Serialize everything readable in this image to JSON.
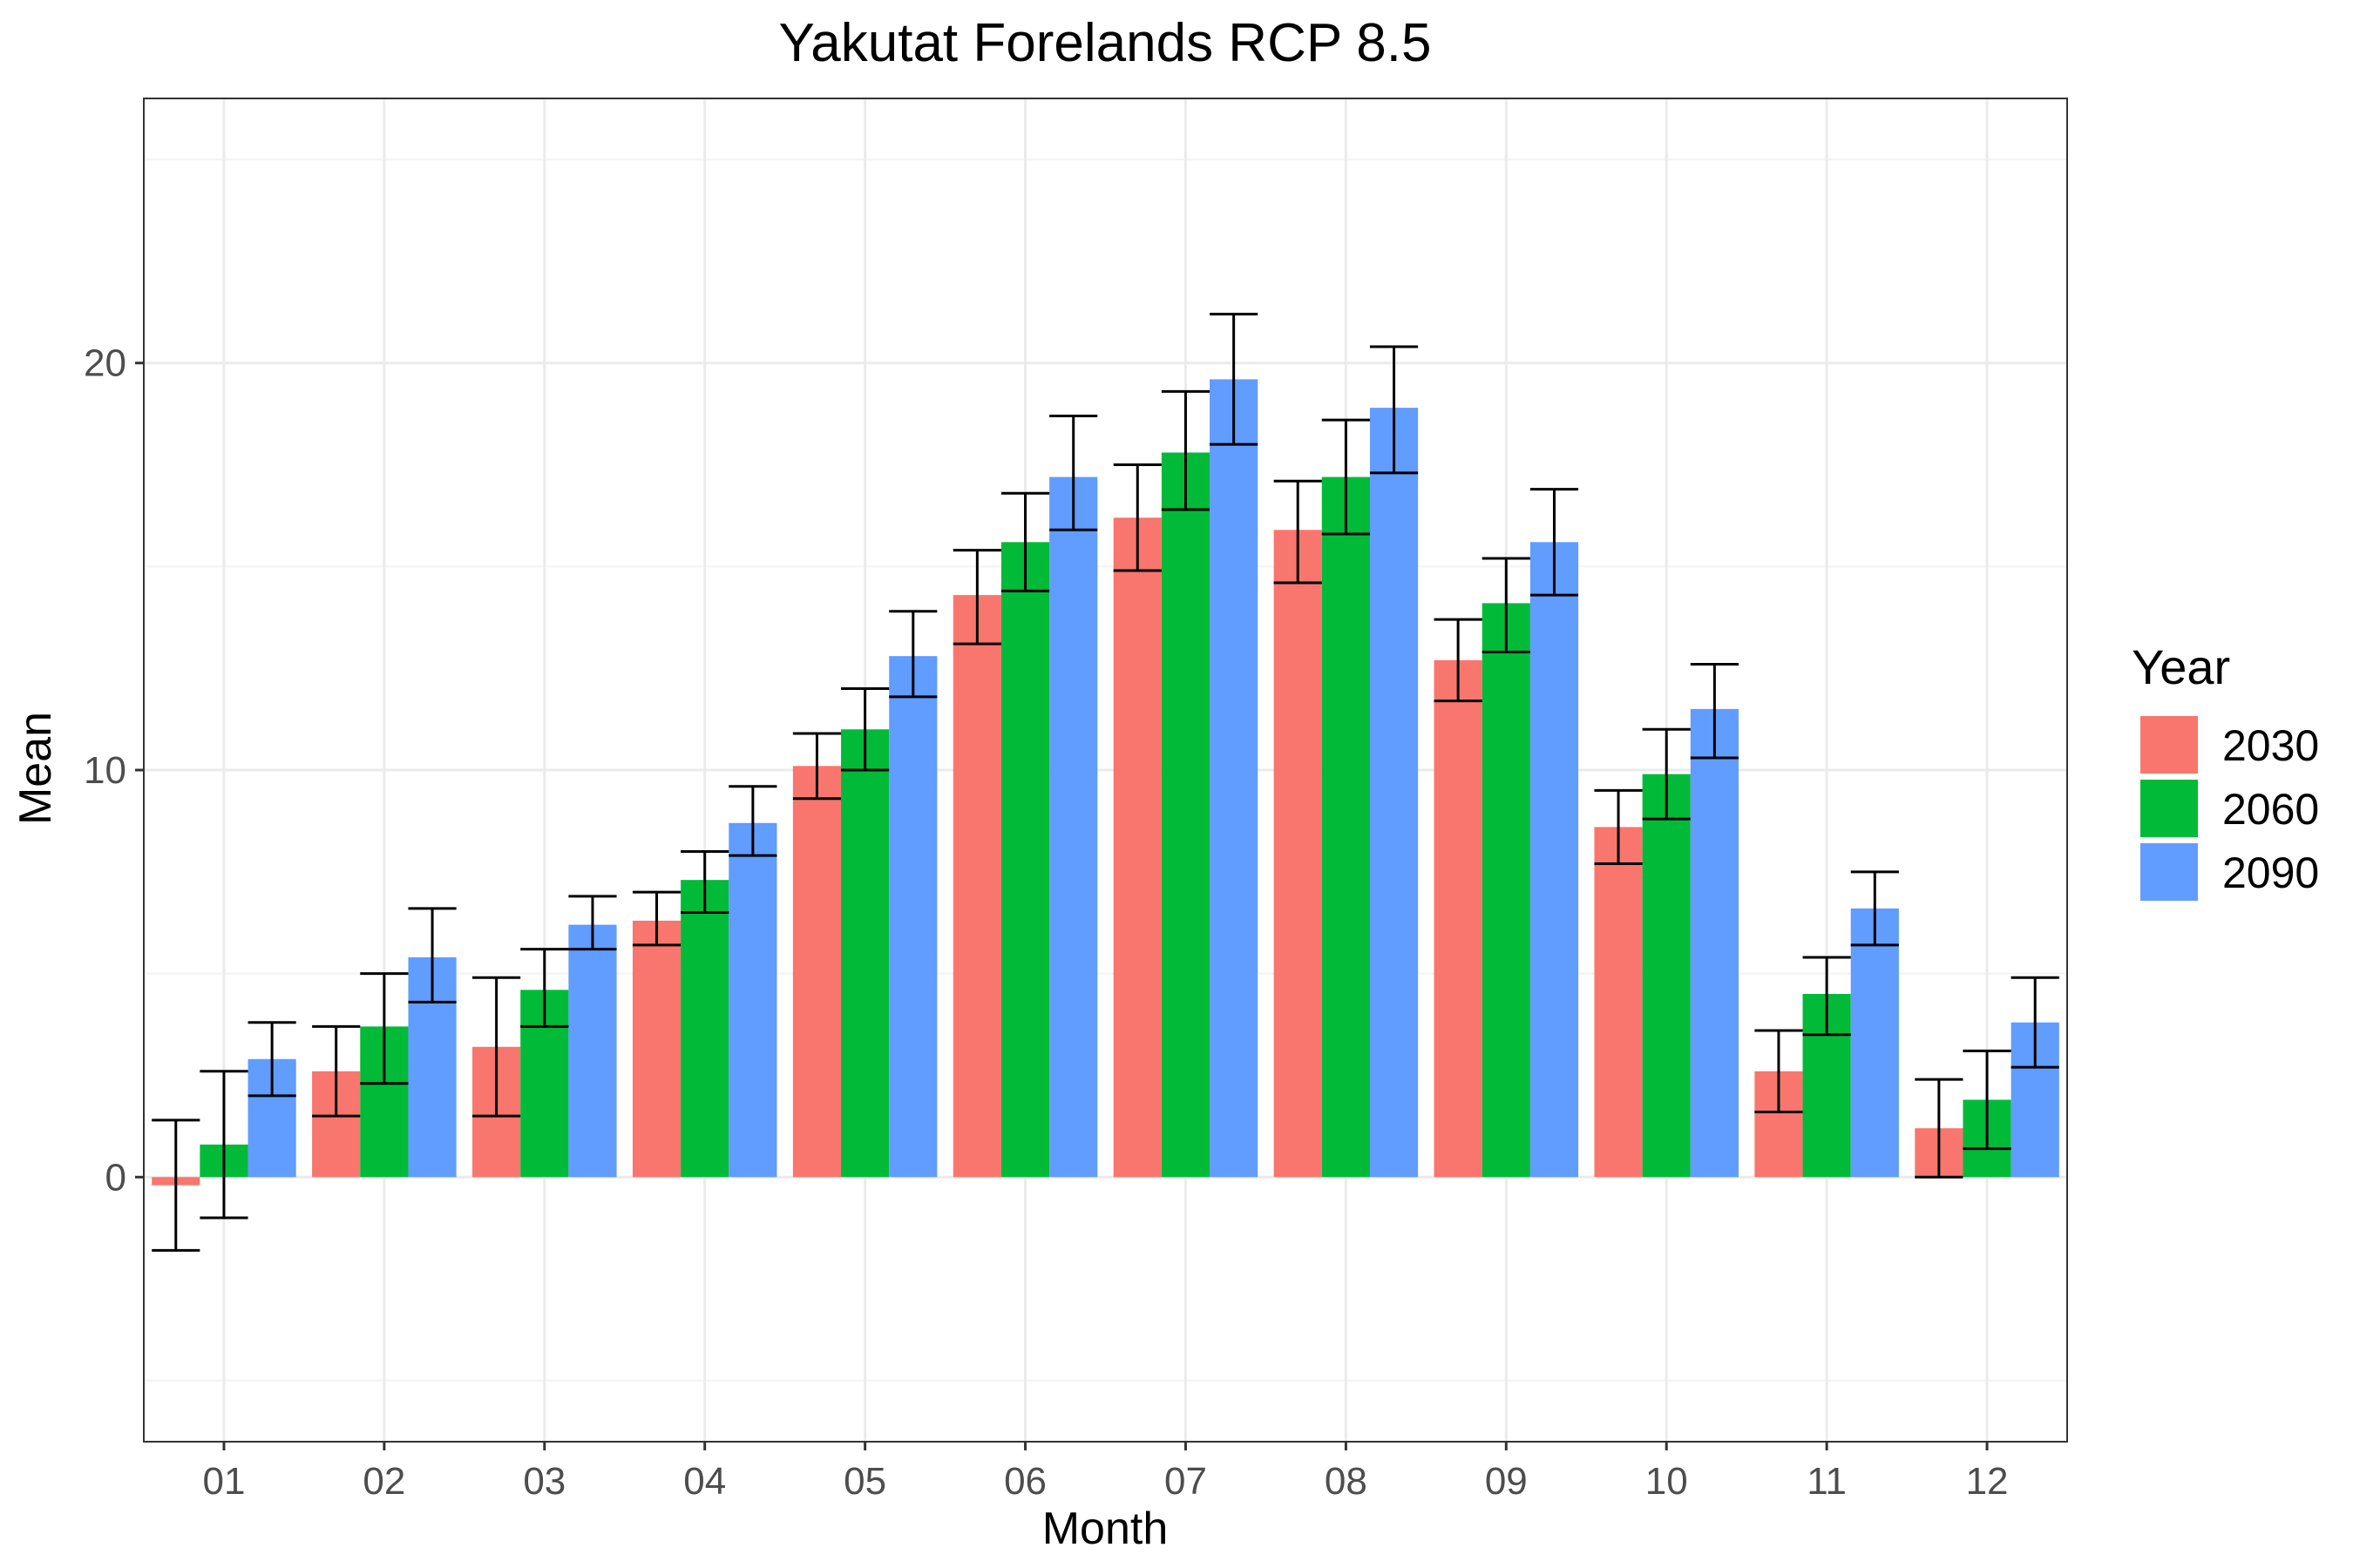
{
  "chart_data": {
    "type": "bar",
    "title": "Yakutat Forelands RCP 8.5",
    "xlabel": "Month",
    "ylabel": "Mean",
    "categories": [
      "01",
      "02",
      "03",
      "04",
      "05",
      "06",
      "07",
      "08",
      "09",
      "10",
      "11",
      "12"
    ],
    "ylim": [
      -6.5,
      26.5
    ],
    "yticks": [
      0,
      10,
      20
    ],
    "grid": true,
    "legend": {
      "title": "Year",
      "position": "right"
    },
    "series": [
      {
        "name": "2030",
        "color": "#F8766D",
        "values": [
          -0.2,
          2.6,
          3.2,
          6.3,
          10.1,
          14.3,
          16.2,
          15.9,
          12.7,
          8.6,
          2.6,
          1.2
        ],
        "error_low": [
          -1.8,
          1.5,
          1.5,
          5.7,
          9.3,
          13.1,
          14.9,
          14.6,
          11.7,
          7.7,
          1.6,
          0.0
        ],
        "error_high": [
          1.4,
          3.7,
          4.9,
          7.0,
          10.9,
          15.4,
          17.5,
          17.1,
          13.7,
          9.5,
          3.6,
          2.4
        ]
      },
      {
        "name": "2060",
        "color": "#00BA38",
        "values": [
          0.8,
          3.7,
          4.6,
          7.3,
          11.0,
          15.6,
          17.8,
          17.2,
          14.1,
          9.9,
          4.5,
          1.9
        ],
        "error_low": [
          -1.0,
          2.3,
          3.7,
          6.5,
          10.0,
          14.4,
          16.4,
          15.8,
          12.9,
          8.8,
          3.5,
          0.7
        ],
        "error_high": [
          2.6,
          5.0,
          5.6,
          8.0,
          12.0,
          16.8,
          19.3,
          18.6,
          15.2,
          11.0,
          5.4,
          3.1
        ]
      },
      {
        "name": "2090",
        "color": "#619CFF",
        "values": [
          2.9,
          5.4,
          6.2,
          8.7,
          12.8,
          17.2,
          19.6,
          18.9,
          15.6,
          11.5,
          6.6,
          3.8
        ],
        "error_low": [
          2.0,
          4.3,
          5.6,
          7.9,
          11.8,
          15.9,
          18.0,
          17.3,
          14.3,
          10.3,
          5.7,
          2.7
        ],
        "error_high": [
          3.8,
          6.6,
          6.9,
          9.6,
          13.9,
          18.7,
          21.2,
          20.4,
          16.9,
          12.6,
          7.5,
          4.9
        ]
      }
    ]
  }
}
